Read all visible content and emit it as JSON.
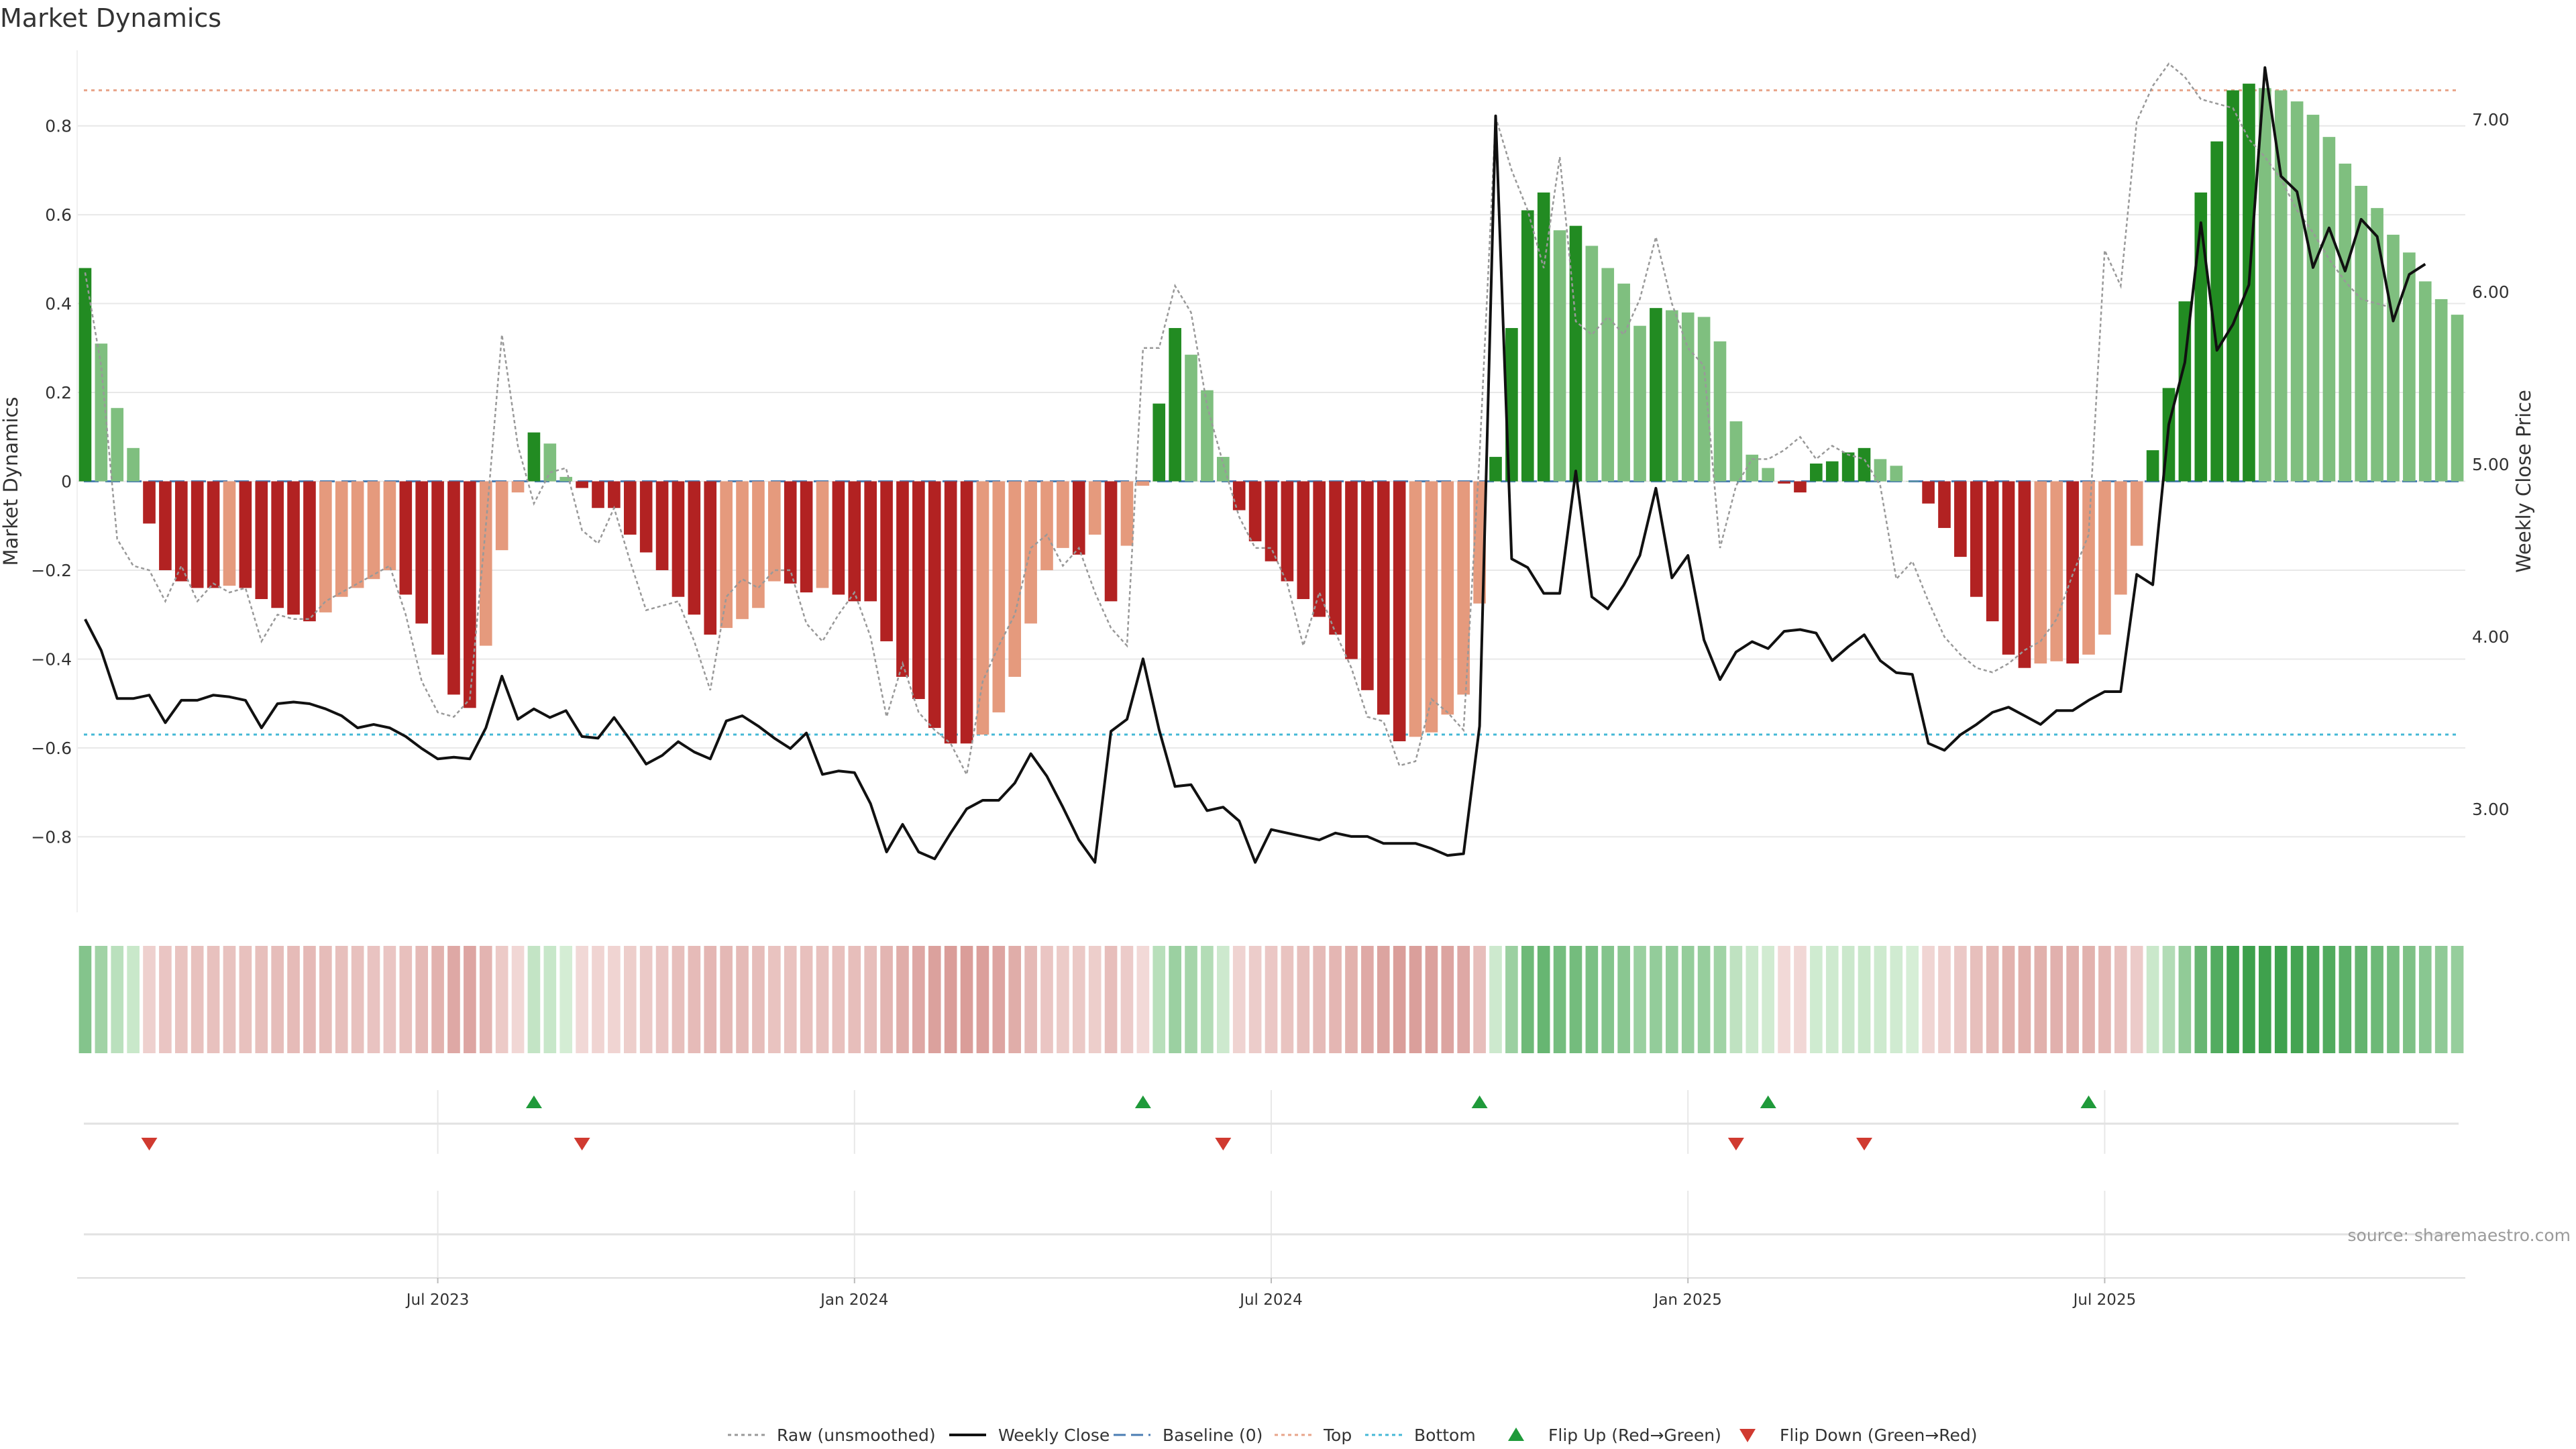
{
  "chart_data": {
    "type": "bar",
    "title": "Market Dynamics",
    "source": "source: sharemaestro.com",
    "ylabel_left": "Market Dynamics",
    "ylabel_right": "Weekly Close Price",
    "ylim_left": [
      -0.97,
      0.97
    ],
    "ylim_right": [
      2.4,
      7.4
    ],
    "yticks_left": [
      {
        "value": 0.8,
        "label": "0.8"
      },
      {
        "value": 0.6,
        "label": "0.6"
      },
      {
        "value": 0.4,
        "label": "0.4"
      },
      {
        "value": 0.2,
        "label": "0.2"
      },
      {
        "value": 0,
        "label": "0"
      },
      {
        "value": -0.2,
        "label": "−0.2"
      },
      {
        "value": -0.4,
        "label": "−0.4"
      },
      {
        "value": -0.6,
        "label": "−0.6"
      },
      {
        "value": -0.8,
        "label": "−0.8"
      }
    ],
    "yticks_right": [
      {
        "value": 7.0,
        "label": "7.00"
      },
      {
        "value": 6.0,
        "label": "6.00"
      },
      {
        "value": 5.0,
        "label": "5.00"
      },
      {
        "value": 4.0,
        "label": "4.00"
      },
      {
        "value": 3.0,
        "label": "3.00"
      }
    ],
    "xticks": [
      {
        "index": 22,
        "label": "Jul 2023"
      },
      {
        "index": 48,
        "label": "Jan 2024"
      },
      {
        "index": 74,
        "label": "Jul 2024"
      },
      {
        "index": 100,
        "label": "Jan 2025"
      },
      {
        "index": 126,
        "label": "Jul 2025"
      }
    ],
    "top_level": 0.88,
    "bottom_level": -0.57,
    "baseline": 0,
    "dynamics": [
      0.48,
      0.31,
      0.165,
      0.075,
      -0.095,
      -0.2,
      -0.225,
      -0.24,
      -0.24,
      -0.235,
      -0.24,
      -0.265,
      -0.285,
      -0.3,
      -0.315,
      -0.295,
      -0.26,
      -0.24,
      -0.22,
      -0.2,
      -0.255,
      -0.32,
      -0.39,
      -0.48,
      -0.51,
      -0.37,
      -0.155,
      -0.025,
      0.11,
      0.085,
      0.01,
      -0.015,
      -0.06,
      -0.06,
      -0.12,
      -0.16,
      -0.2,
      -0.26,
      -0.3,
      -0.345,
      -0.33,
      -0.31,
      -0.285,
      -0.225,
      -0.23,
      -0.25,
      -0.24,
      -0.255,
      -0.27,
      -0.27,
      -0.36,
      -0.44,
      -0.49,
      -0.555,
      -0.59,
      -0.59,
      -0.57,
      -0.52,
      -0.44,
      -0.32,
      -0.2,
      -0.15,
      -0.165,
      -0.12,
      -0.27,
      -0.145,
      -0.01,
      0.175,
      0.345,
      0.285,
      0.205,
      0.055,
      -0.065,
      -0.135,
      -0.18,
      -0.225,
      -0.265,
      -0.305,
      -0.345,
      -0.4,
      -0.47,
      -0.525,
      -0.585,
      -0.575,
      -0.565,
      -0.525,
      -0.48,
      -0.275,
      0.055,
      0.345,
      0.61,
      0.65,
      0.565,
      0.575,
      0.53,
      0.48,
      0.445,
      0.35,
      0.39,
      0.385,
      0.38,
      0.37,
      0.315,
      0.135,
      0.06,
      0.03,
      -0.005,
      -0.025,
      0.04,
      0.045,
      0.065,
      0.075,
      0.05,
      0.035,
      0.0,
      -0.05,
      -0.105,
      -0.17,
      -0.26,
      -0.315,
      -0.39,
      -0.42,
      -0.41,
      -0.405,
      -0.41,
      -0.39,
      -0.345,
      -0.255,
      -0.145,
      0.07,
      0.21,
      0.405,
      0.65,
      0.765,
      0.88,
      0.895,
      0.885,
      0.88,
      0.855,
      0.825,
      0.775,
      0.715,
      0.665,
      0.615,
      0.555,
      0.515,
      0.45,
      0.41,
      0.375
    ],
    "raw_unsmoothed": [
      0.47,
      0.26,
      -0.13,
      -0.19,
      -0.2,
      -0.27,
      -0.19,
      -0.27,
      -0.23,
      -0.25,
      -0.24,
      -0.36,
      -0.3,
      -0.31,
      -0.31,
      -0.27,
      -0.25,
      -0.23,
      -0.21,
      -0.19,
      -0.3,
      -0.45,
      -0.52,
      -0.53,
      -0.49,
      -0.1,
      0.33,
      0.08,
      -0.05,
      0.02,
      0.03,
      -0.11,
      -0.14,
      -0.06,
      -0.18,
      -0.29,
      -0.28,
      -0.27,
      -0.36,
      -0.47,
      -0.26,
      -0.22,
      -0.24,
      -0.2,
      -0.2,
      -0.32,
      -0.36,
      -0.3,
      -0.25,
      -0.35,
      -0.53,
      -0.41,
      -0.52,
      -0.56,
      -0.59,
      -0.66,
      -0.45,
      -0.37,
      -0.3,
      -0.15,
      -0.12,
      -0.19,
      -0.15,
      -0.25,
      -0.33,
      -0.37,
      0.3,
      0.3,
      0.44,
      0.38,
      0.17,
      0.04,
      -0.08,
      -0.15,
      -0.15,
      -0.23,
      -0.37,
      -0.25,
      -0.34,
      -0.42,
      -0.53,
      -0.54,
      -0.64,
      -0.63,
      -0.49,
      -0.52,
      -0.56,
      0.06,
      0.82,
      0.7,
      0.61,
      0.48,
      0.73,
      0.36,
      0.33,
      0.37,
      0.33,
      0.41,
      0.55,
      0.4,
      0.3,
      0.26,
      -0.15,
      -0.01,
      0.05,
      0.05,
      0.07,
      0.1,
      0.05,
      0.08,
      0.06,
      0.05,
      -0.01,
      -0.22,
      -0.18,
      -0.27,
      -0.35,
      -0.39,
      -0.42,
      -0.43,
      -0.41,
      -0.38,
      -0.36,
      -0.31,
      -0.21,
      -0.12,
      0.52,
      0.44,
      0.81,
      0.89,
      0.94,
      0.91,
      0.86,
      0.85,
      0.84,
      0.77,
      0.73,
      0.68,
      0.61,
      0.56,
      0.5,
      0.45,
      0.41,
      0.4,
      0.39
    ],
    "weekly_close": [
      4.1,
      3.92,
      3.64,
      3.64,
      3.66,
      3.5,
      3.63,
      3.63,
      3.66,
      3.65,
      3.63,
      3.47,
      3.61,
      3.62,
      3.61,
      3.58,
      3.54,
      3.47,
      3.49,
      3.47,
      3.42,
      3.35,
      3.29,
      3.3,
      3.29,
      3.47,
      3.77,
      3.52,
      3.58,
      3.53,
      3.57,
      3.42,
      3.41,
      3.53,
      3.4,
      3.26,
      3.31,
      3.39,
      3.33,
      3.29,
      3.51,
      3.54,
      3.48,
      3.41,
      3.35,
      3.44,
      3.2,
      3.22,
      3.21,
      3.03,
      2.75,
      2.91,
      2.75,
      2.71,
      2.86,
      3.0,
      3.05,
      3.05,
      3.15,
      3.32,
      3.19,
      3.01,
      2.82,
      2.69,
      3.45,
      3.52,
      3.87,
      3.46,
      3.13,
      3.14,
      2.99,
      3.01,
      2.93,
      2.69,
      2.88,
      2.86,
      2.84,
      2.82,
      2.86,
      2.84,
      2.84,
      2.8,
      2.8,
      2.8,
      2.77,
      2.73,
      2.74,
      3.48,
      7.02,
      4.45,
      4.4,
      4.25,
      4.25,
      4.96,
      4.23,
      4.16,
      4.3,
      4.47,
      4.86,
      4.34,
      4.47,
      3.98,
      3.75,
      3.91,
      3.97,
      3.93,
      4.03,
      4.04,
      4.02,
      3.86,
      3.94,
      4.01,
      3.86,
      3.79,
      3.78,
      3.38,
      3.34,
      3.43,
      3.49,
      3.56,
      3.59,
      3.54,
      3.49,
      3.57,
      3.57,
      3.63,
      3.68,
      3.68,
      4.36,
      4.3,
      5.23,
      5.59,
      6.4,
      5.66,
      5.81,
      6.04,
      7.3,
      6.67,
      6.58,
      6.14,
      6.37,
      6.12,
      6.42,
      6.32,
      5.83,
      6.1,
      6.16
    ],
    "flip_up_indices": [
      28,
      66,
      87,
      105,
      125
    ],
    "flip_down_indices": [
      4,
      31,
      71,
      103,
      111
    ],
    "legend": [
      {
        "label": "Raw (unsmoothed)",
        "style": "dotted",
        "color": "#999999"
      },
      {
        "label": "Weekly Close",
        "style": "solid",
        "color": "#111111"
      },
      {
        "label": "Baseline (0)",
        "style": "dashed",
        "color": "#4a7db3"
      },
      {
        "label": "Top",
        "style": "dotted",
        "color": "#e8a58a"
      },
      {
        "label": "Bottom",
        "style": "dotted",
        "color": "#45b8d6"
      },
      {
        "label": "Flip Up (Red→Green)",
        "style": "marker-up",
        "color": "#1f9a3a"
      },
      {
        "label": "Flip Down (Green→Red)",
        "style": "marker-down",
        "color": "#d03a30"
      }
    ],
    "colors": {
      "strong_up": "#228b22",
      "weak_up": "#7fbf7f",
      "strong_down": "#b22222",
      "weak_down": "#e59a7d",
      "grid": "#e8e8e8",
      "axis_text": "#333333",
      "source_text": "#9a9a9a"
    }
  }
}
